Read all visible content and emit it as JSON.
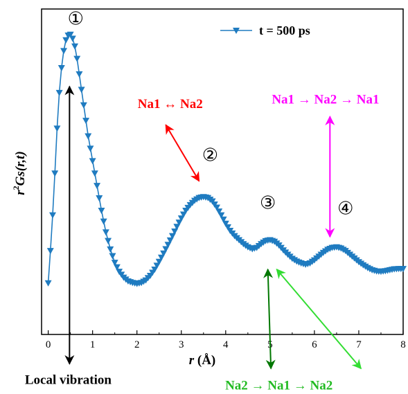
{
  "chart_data": {
    "type": "scatter",
    "xlabel_var": "r",
    "xlabel_unit": " (Å)",
    "ylabel_parts": [
      "r",
      "2",
      "Gs(r,t)"
    ],
    "xlim": [
      -0.15,
      8
    ],
    "ylim": [
      0,
      1.05
    ],
    "xticks": [
      "0",
      "1",
      "2",
      "3",
      "4",
      "5",
      "6",
      "7",
      "8"
    ],
    "legend": {
      "position": "top-right",
      "label": "t = 500 ps"
    },
    "series_color": "#1f7bc0",
    "curve_points": [
      [
        0.0,
        0.166
      ],
      [
        0.05,
        0.27
      ],
      [
        0.1,
        0.385
      ],
      [
        0.15,
        0.52
      ],
      [
        0.2,
        0.665
      ],
      [
        0.25,
        0.78
      ],
      [
        0.3,
        0.86
      ],
      [
        0.35,
        0.915
      ],
      [
        0.4,
        0.95
      ],
      [
        0.45,
        0.965
      ],
      [
        0.5,
        0.968
      ],
      [
        0.55,
        0.955
      ],
      [
        0.6,
        0.93
      ],
      [
        0.65,
        0.89
      ],
      [
        0.7,
        0.84
      ],
      [
        0.8,
        0.74
      ],
      [
        0.9,
        0.64
      ],
      [
        1.0,
        0.56
      ],
      [
        1.1,
        0.48
      ],
      [
        1.2,
        0.4
      ],
      [
        1.3,
        0.33
      ],
      [
        1.4,
        0.275
      ],
      [
        1.5,
        0.232
      ],
      [
        1.6,
        0.203
      ],
      [
        1.7,
        0.184
      ],
      [
        1.8,
        0.172
      ],
      [
        1.9,
        0.167
      ],
      [
        2.0,
        0.164
      ],
      [
        2.1,
        0.167
      ],
      [
        2.2,
        0.175
      ],
      [
        2.3,
        0.19
      ],
      [
        2.4,
        0.21
      ],
      [
        2.5,
        0.235
      ],
      [
        2.6,
        0.262
      ],
      [
        2.7,
        0.29
      ],
      [
        2.8,
        0.318
      ],
      [
        2.9,
        0.348
      ],
      [
        3.0,
        0.375
      ],
      [
        3.1,
        0.4
      ],
      [
        3.2,
        0.418
      ],
      [
        3.3,
        0.432
      ],
      [
        3.4,
        0.441
      ],
      [
        3.5,
        0.444
      ],
      [
        3.6,
        0.441
      ],
      [
        3.7,
        0.43
      ],
      [
        3.8,
        0.41
      ],
      [
        3.9,
        0.385
      ],
      [
        4.0,
        0.358
      ],
      [
        4.1,
        0.335
      ],
      [
        4.2,
        0.318
      ],
      [
        4.3,
        0.305
      ],
      [
        4.4,
        0.292
      ],
      [
        4.5,
        0.282
      ],
      [
        4.6,
        0.276
      ],
      [
        4.7,
        0.28
      ],
      [
        4.8,
        0.292
      ],
      [
        4.9,
        0.302
      ],
      [
        5.0,
        0.305
      ],
      [
        5.1,
        0.3
      ],
      [
        5.2,
        0.288
      ],
      [
        5.3,
        0.272
      ],
      [
        5.4,
        0.258
      ],
      [
        5.5,
        0.245
      ],
      [
        5.6,
        0.236
      ],
      [
        5.7,
        0.23
      ],
      [
        5.8,
        0.226
      ],
      [
        5.9,
        0.23
      ],
      [
        6.0,
        0.24
      ],
      [
        6.1,
        0.252
      ],
      [
        6.2,
        0.264
      ],
      [
        6.3,
        0.274
      ],
      [
        6.4,
        0.28
      ],
      [
        6.5,
        0.282
      ],
      [
        6.6,
        0.278
      ],
      [
        6.7,
        0.27
      ],
      [
        6.8,
        0.258
      ],
      [
        6.9,
        0.246
      ],
      [
        7.0,
        0.234
      ],
      [
        7.1,
        0.224
      ],
      [
        7.2,
        0.215
      ],
      [
        7.3,
        0.208
      ],
      [
        7.4,
        0.204
      ],
      [
        7.5,
        0.203
      ],
      [
        7.6,
        0.205
      ],
      [
        7.7,
        0.208
      ],
      [
        7.8,
        0.211
      ],
      [
        7.9,
        0.212
      ],
      [
        8.0,
        0.212
      ]
    ],
    "peak_labels": [
      {
        "text": "①",
        "x": 0.62,
        "y": 1.0
      },
      {
        "text": "②",
        "x": 3.65,
        "y": 0.56
      },
      {
        "text": "③",
        "x": 4.95,
        "y": 0.405
      },
      {
        "text": "④",
        "x": 6.7,
        "y": 0.388
      }
    ],
    "annotations": [
      {
        "text": "Na1 ↔ Na2",
        "color": "#ff0000",
        "x": 2.75,
        "y": 0.73
      },
      {
        "text": "Na1 → Na2 → Na1",
        "color": "#ff00ff",
        "x": 6.25,
        "y": 0.745
      },
      {
        "text": "Na2 → Na1 → Na2",
        "color": "#22bb22",
        "x": 5.2,
        "y": -0.178
      },
      {
        "text": "Local vibration",
        "color": "#000000",
        "x": 0.45,
        "y": -0.16
      }
    ],
    "arrows": [
      {
        "color": "#000000",
        "x1": 0.48,
        "y1": 0.8,
        "x2": 0.48,
        "y2": -0.095,
        "double": true
      },
      {
        "color": "#ff0000",
        "x1": 2.65,
        "y1": 0.676,
        "x2": 3.4,
        "y2": 0.495,
        "double": true
      },
      {
        "color": "#ff00ff",
        "x1": 6.35,
        "y1": 0.703,
        "x2": 6.35,
        "y2": 0.315,
        "double": true
      },
      {
        "color": "#007700",
        "x1": 4.95,
        "y1": 0.21,
        "x2": 5.02,
        "y2": -0.11,
        "double": true
      },
      {
        "color": "#33dd33",
        "x1": 5.15,
        "y1": 0.21,
        "x2": 7.05,
        "y2": -0.11,
        "double": true
      }
    ]
  }
}
